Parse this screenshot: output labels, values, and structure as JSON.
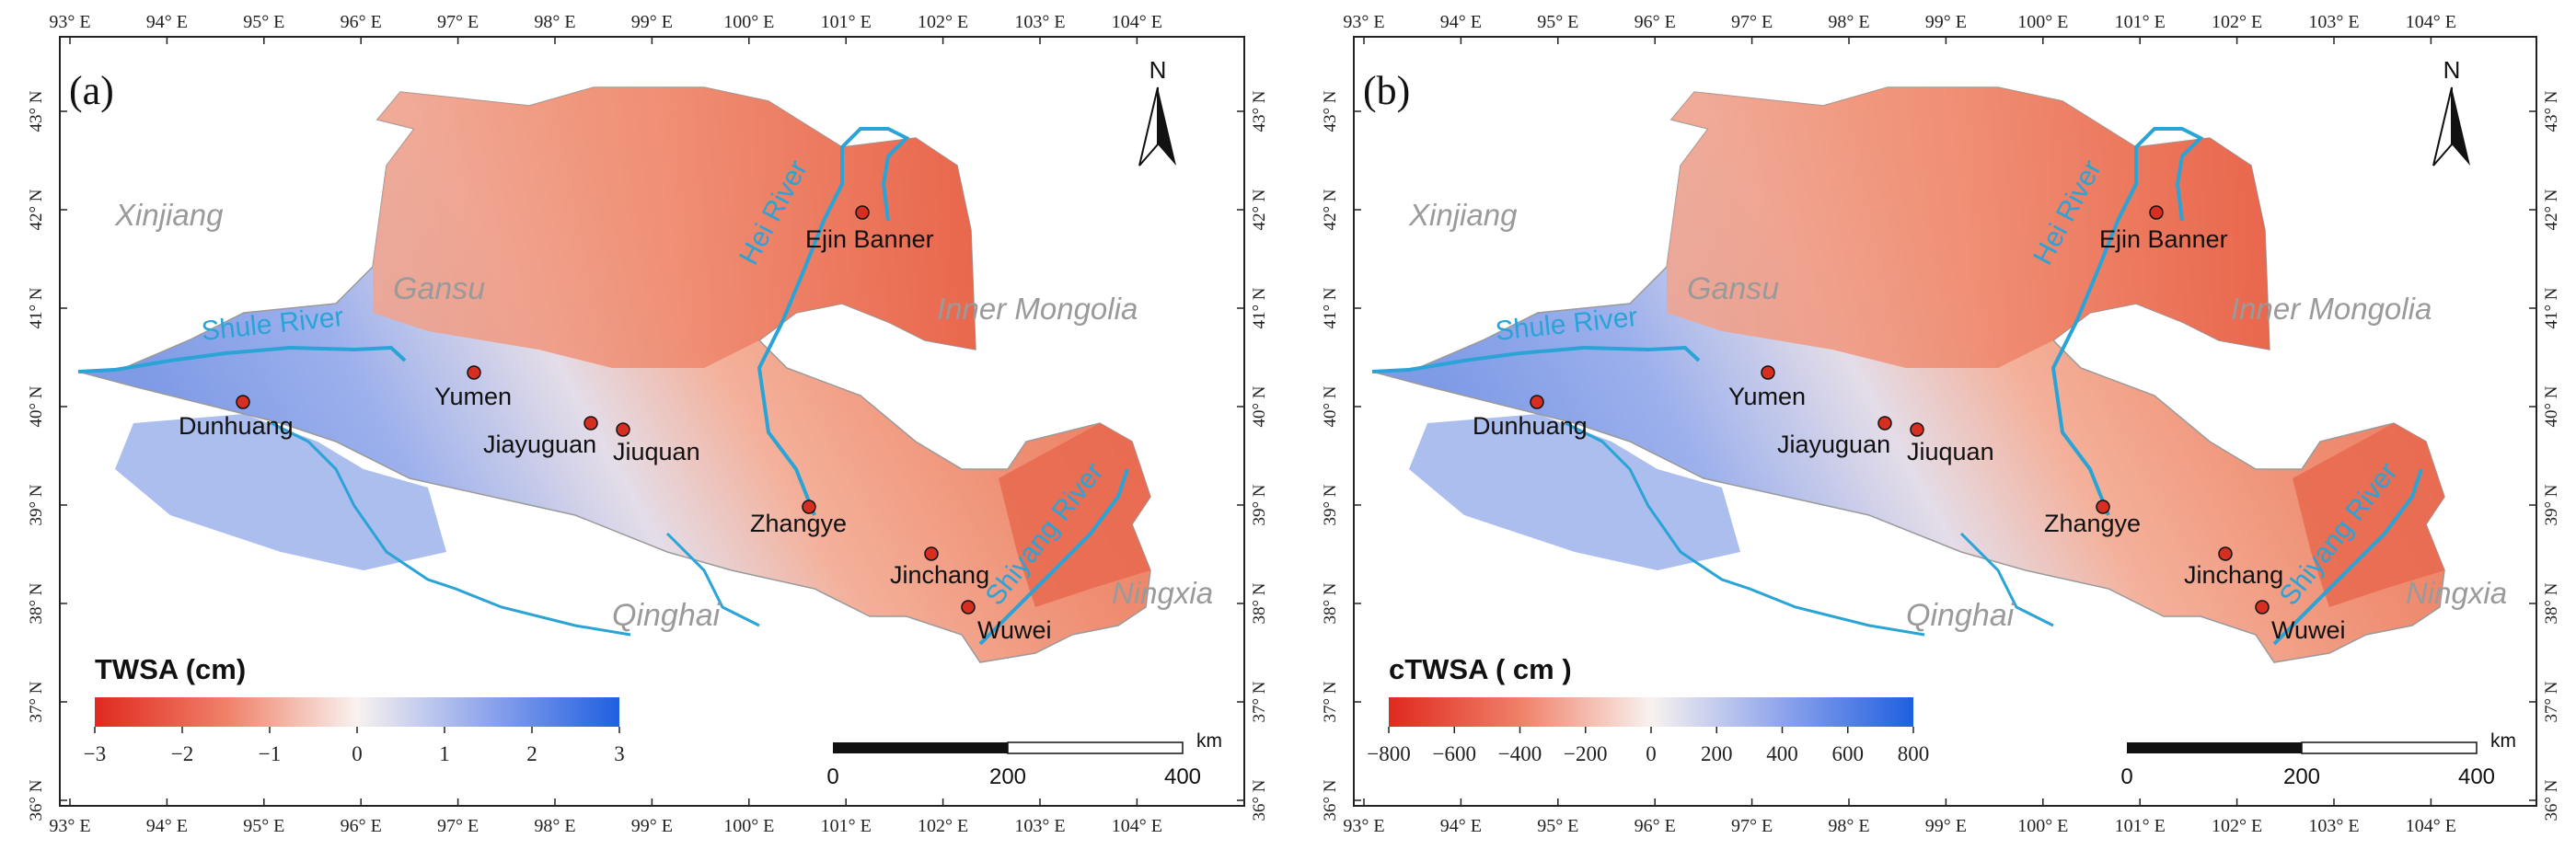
{
  "axes": {
    "lon_labels": [
      "93° E",
      "94° E",
      "95° E",
      "96° E",
      "97° E",
      "98° E",
      "99° E",
      "100° E",
      "101° E",
      "102° E",
      "103° E",
      "104° E"
    ],
    "lat_labels": [
      "43° N",
      "42° N",
      "41° N",
      "40° N",
      "39° N",
      "38° N",
      "37° N",
      "36° N"
    ]
  },
  "panels": [
    {
      "id": "a",
      "label": "(a)",
      "legend_title": "TWSA (cm)",
      "legend_ticks": [
        "−3",
        "−2",
        "−1",
        "0",
        "1",
        "2",
        "3"
      ]
    },
    {
      "id": "b",
      "label": "(b)",
      "legend_title": "cTWSA ( cm )",
      "legend_ticks": [
        "−800",
        "−600",
        "−400",
        "−200",
        "0",
        "200",
        "400",
        "600",
        "800"
      ]
    }
  ],
  "north_arrow": "N",
  "scalebar": {
    "ticks": [
      "0",
      "200",
      "400"
    ],
    "unit": "km"
  },
  "regions": [
    "Xinjiang",
    "Gansu",
    "Inner Mongolia",
    "Qinghai",
    "Ningxia"
  ],
  "rivers": [
    "Shule River",
    "Hei River",
    "Shiyang River"
  ],
  "cities": [
    "Ejin Banner",
    "Yumen",
    "Dunhuang",
    "Jiayuguan",
    "Jiuquan",
    "Zhangye",
    "Jinchang",
    "Wuwei"
  ],
  "colors": {
    "deficit": "#e0291f",
    "neutral": "#f8f2ef",
    "surplus": "#1f5fe0",
    "river": "#2aa3d6",
    "city": "#d62f22",
    "region_text": "#9a9a9a"
  }
}
